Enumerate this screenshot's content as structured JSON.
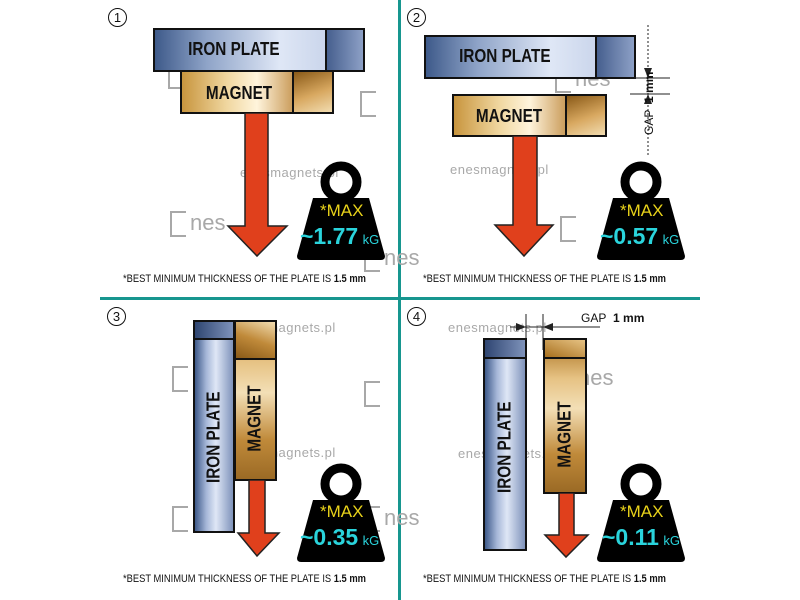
{
  "panels": [
    {
      "number": "1",
      "iron_label": "IRON PLATE",
      "magnet_label": "MAGNET",
      "weight_max": "*MAX",
      "weight_value": "~1.77",
      "weight_unit": "kG"
    },
    {
      "number": "2",
      "iron_label": "IRON PLATE",
      "magnet_label": "MAGNET",
      "gap_label": "GAP",
      "gap_value": "1 mm",
      "weight_max": "*MAX",
      "weight_value": "~0.57",
      "weight_unit": "kG"
    },
    {
      "number": "3",
      "iron_label": "IRON  PLATE",
      "magnet_label": "MAGNET",
      "weight_max": "*MAX",
      "weight_value": "~0.35",
      "weight_unit": "kG"
    },
    {
      "number": "4",
      "iron_label": "IRON PLATE",
      "magnet_label": "MAGNET",
      "gap_label": "GAP",
      "gap_value": "1 mm",
      "weight_max": "*MAX",
      "weight_value": "~0.11",
      "weight_unit": "kG"
    }
  ],
  "caption": {
    "text": "*BEST MINIMUM THICKNESS OF THE PLATE IS ",
    "value": "1.5 mm"
  },
  "watermark": {
    "site": "enesmagnets.pl",
    "logo": "Enes"
  },
  "colors": {
    "divider": "#17968f",
    "arrow": "#e0401c",
    "weight": "#000000",
    "max_text": "#e8d21a",
    "value_text": "#2ad4dc"
  }
}
